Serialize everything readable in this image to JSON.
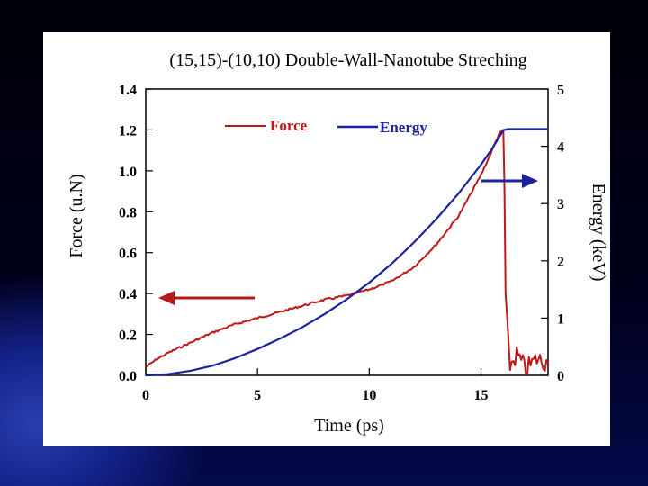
{
  "chart_data": {
    "type": "line",
    "title": "(15,15)-(10,10) Double-Wall-Nanotube Streching",
    "xlabel": "Time (ps)",
    "ylabel": "Force (u.N)",
    "y2label": "Energy (keV)",
    "xlim": [
      0,
      18
    ],
    "ylim": [
      0,
      1.4
    ],
    "y2lim": [
      0,
      5
    ],
    "xticks": [
      "0",
      "5",
      "10",
      "15"
    ],
    "yticks": [
      "0.0",
      "0.2",
      "0.4",
      "0.6",
      "0.8",
      "1.0",
      "1.2",
      "1.4"
    ],
    "y2ticks": [
      "0",
      "1",
      "2",
      "3",
      "4",
      "5"
    ],
    "legend_placement": "top",
    "series": [
      {
        "name": "Force",
        "axis": "left",
        "color": "#c01818",
        "x": [
          0,
          0.5,
          1,
          2,
          3,
          4,
          5,
          6,
          7,
          8,
          9,
          10,
          11,
          12,
          13,
          14,
          15,
          15.5,
          15.8,
          16.0,
          16.05,
          16.1,
          16.3,
          16.6,
          17,
          17.5,
          18
        ],
        "y": [
          0.04,
          0.08,
          0.11,
          0.16,
          0.21,
          0.25,
          0.28,
          0.31,
          0.34,
          0.37,
          0.39,
          0.42,
          0.46,
          0.53,
          0.64,
          0.78,
          0.98,
          1.1,
          1.18,
          1.2,
          0.9,
          0.4,
          0.05,
          0.1,
          0.03,
          0.08,
          0.06
        ]
      },
      {
        "name": "Energy",
        "axis": "right",
        "color": "#1a22a0",
        "x": [
          0,
          1,
          2,
          3,
          4,
          5,
          6,
          7,
          8,
          9,
          10,
          11,
          12,
          13,
          14,
          15,
          15.5,
          16.0,
          16.2,
          16.5,
          18
        ],
        "y": [
          0,
          0.02,
          0.08,
          0.17,
          0.3,
          0.46,
          0.64,
          0.84,
          1.07,
          1.33,
          1.62,
          1.95,
          2.32,
          2.73,
          3.18,
          3.68,
          3.96,
          4.28,
          4.3,
          4.3,
          4.3
        ]
      }
    ],
    "annotations": [
      "left-pointing arrow near Force curve",
      "right-pointing arrow near Energy curve"
    ]
  }
}
